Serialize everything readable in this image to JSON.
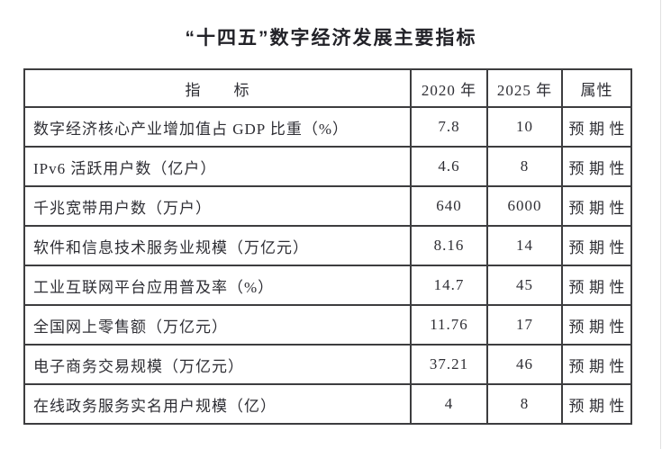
{
  "title": "“十四五”数字经济发展主要指标",
  "colors": {
    "background": "#ffffff",
    "border": "#3d3d3f",
    "text": "#2e2e34",
    "page_edge_line": "#e0e0e0"
  },
  "table": {
    "headers": [
      "指　　标",
      "2020 年",
      "2025 年",
      "属性"
    ],
    "rows": [
      {
        "indicator": "数字经济核心产业增加值占 GDP 比重（%）",
        "y2020": "7.8",
        "y2025": "10",
        "attribute": "预期性"
      },
      {
        "indicator": "IPv6 活跃用户数（亿户）",
        "y2020": "4.6",
        "y2025": "8",
        "attribute": "预期性"
      },
      {
        "indicator": "千兆宽带用户数（万户）",
        "y2020": "640",
        "y2025": "6000",
        "attribute": "预期性"
      },
      {
        "indicator": "软件和信息技术服务业规模（万亿元）",
        "y2020": "8.16",
        "y2025": "14",
        "attribute": "预期性"
      },
      {
        "indicator": "工业互联网平台应用普及率（%）",
        "y2020": "14.7",
        "y2025": "45",
        "attribute": "预期性"
      },
      {
        "indicator": "全国网上零售额（万亿元）",
        "y2020": "11.76",
        "y2025": "17",
        "attribute": "预期性"
      },
      {
        "indicator": "电子商务交易规模（万亿元）",
        "y2020": "37.21",
        "y2025": "46",
        "attribute": "预期性"
      },
      {
        "indicator": "在线政务服务实名用户规模（亿）",
        "y2020": "4",
        "y2025": "8",
        "attribute": "预期性"
      }
    ]
  }
}
